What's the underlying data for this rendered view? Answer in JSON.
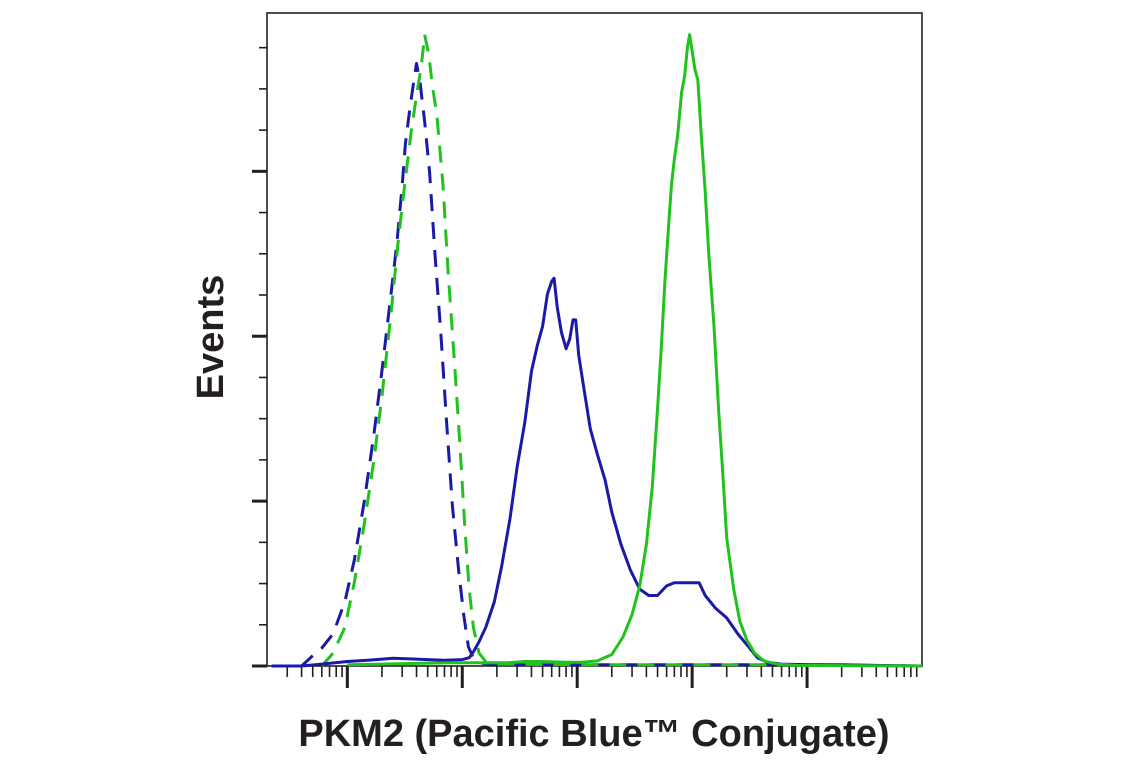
{
  "chart_data": {
    "type": "line",
    "title": "",
    "xlabel": "PKM2 (Pacific Blue™ Conjugate)",
    "ylabel": "Events",
    "x_scale": "log",
    "xlim": [
      0.2,
      100000
    ],
    "ylim": [
      0,
      1
    ],
    "tick_labels_shown": false,
    "grid": false,
    "legend": "none",
    "series": [
      {
        "color": "#1a1aa6",
        "style": "dashed",
        "points": [
          [
            0.22,
            0
          ],
          [
            0.27,
            0
          ],
          [
            0.34,
            0
          ],
          [
            0.4,
            0
          ],
          [
            0.5,
            0.016
          ],
          [
            0.6,
            0.028
          ],
          [
            0.75,
            0.05
          ],
          [
            0.95,
            0.1
          ],
          [
            1.15,
            0.165
          ],
          [
            1.4,
            0.255
          ],
          [
            1.7,
            0.36
          ],
          [
            2.0,
            0.46
          ],
          [
            2.4,
            0.58
          ],
          [
            2.7,
            0.66
          ],
          [
            3.0,
            0.75
          ],
          [
            3.2,
            0.815
          ],
          [
            3.5,
            0.87
          ],
          [
            3.8,
            0.915
          ],
          [
            4.0,
            0.94
          ],
          [
            4.3,
            0.91
          ],
          [
            4.7,
            0.85
          ],
          [
            5.2,
            0.77
          ],
          [
            5.8,
            0.64
          ],
          [
            6.5,
            0.52
          ],
          [
            7.3,
            0.38
          ],
          [
            8.2,
            0.25
          ],
          [
            9.3,
            0.15
          ],
          [
            10.3,
            0.08
          ],
          [
            11.3,
            0.03
          ],
          [
            12.5,
            0.012
          ],
          [
            14,
            0.005
          ],
          [
            17,
            0.003
          ],
          [
            25,
            0.002
          ],
          [
            100,
            0.002
          ],
          [
            1000,
            0.002
          ],
          [
            10000,
            0.002
          ],
          [
            30000,
            0.001
          ],
          [
            100000,
            0
          ]
        ]
      },
      {
        "color": "#22c21e",
        "style": "dashed",
        "points": [
          [
            0.6,
            0
          ],
          [
            0.75,
            0.02
          ],
          [
            0.95,
            0.06
          ],
          [
            1.15,
            0.13
          ],
          [
            1.4,
            0.22
          ],
          [
            1.7,
            0.32
          ],
          [
            2.0,
            0.42
          ],
          [
            2.4,
            0.55
          ],
          [
            2.8,
            0.67
          ],
          [
            3.2,
            0.76
          ],
          [
            3.6,
            0.835
          ],
          [
            4.0,
            0.89
          ],
          [
            4.4,
            0.935
          ],
          [
            4.7,
            0.985
          ],
          [
            5.1,
            0.955
          ],
          [
            5.5,
            0.905
          ],
          [
            6.0,
            0.86
          ],
          [
            6.8,
            0.75
          ],
          [
            7.5,
            0.62
          ],
          [
            8.5,
            0.48
          ],
          [
            9.5,
            0.35
          ],
          [
            10.5,
            0.22
          ],
          [
            11.5,
            0.12
          ],
          [
            12.5,
            0.06
          ],
          [
            14,
            0.02
          ],
          [
            16,
            0.007
          ],
          [
            20,
            0.003
          ],
          [
            100,
            0.002
          ],
          [
            1000,
            0.002
          ],
          [
            10000,
            0.002
          ],
          [
            30000,
            0.001
          ],
          [
            100000,
            0
          ]
        ]
      },
      {
        "color": "#1a1aa6",
        "style": "solid",
        "points": [
          [
            0.22,
            0
          ],
          [
            0.34,
            0
          ],
          [
            0.4,
            0
          ],
          [
            0.6,
            0.003
          ],
          [
            1.0,
            0.007
          ],
          [
            1.5,
            0.009
          ],
          [
            2.5,
            0.012
          ],
          [
            3.5,
            0.011
          ],
          [
            5,
            0.01
          ],
          [
            7,
            0.009
          ],
          [
            10,
            0.01
          ],
          [
            11.5,
            0.013
          ],
          [
            12.5,
            0.022
          ],
          [
            14,
            0.038
          ],
          [
            16,
            0.06
          ],
          [
            19,
            0.1
          ],
          [
            22,
            0.155
          ],
          [
            26,
            0.23
          ],
          [
            30,
            0.31
          ],
          [
            35,
            0.38
          ],
          [
            40,
            0.46
          ],
          [
            45,
            0.5
          ],
          [
            50,
            0.53
          ],
          [
            55,
            0.58
          ],
          [
            60,
            0.6
          ],
          [
            63,
            0.605
          ],
          [
            67,
            0.56
          ],
          [
            73,
            0.52
          ],
          [
            80,
            0.495
          ],
          [
            86,
            0.51
          ],
          [
            92,
            0.54
          ],
          [
            97,
            0.54
          ],
          [
            103,
            0.485
          ],
          [
            115,
            0.43
          ],
          [
            130,
            0.37
          ],
          [
            150,
            0.33
          ],
          [
            175,
            0.29
          ],
          [
            200,
            0.24
          ],
          [
            240,
            0.19
          ],
          [
            290,
            0.15
          ],
          [
            350,
            0.12
          ],
          [
            420,
            0.11
          ],
          [
            500,
            0.11
          ],
          [
            600,
            0.125
          ],
          [
            700,
            0.13
          ],
          [
            850,
            0.13
          ],
          [
            1000,
            0.13
          ],
          [
            1150,
            0.13
          ],
          [
            1300,
            0.11
          ],
          [
            1600,
            0.09
          ],
          [
            2000,
            0.075
          ],
          [
            2500,
            0.05
          ],
          [
            3100,
            0.03
          ],
          [
            3700,
            0.013
          ],
          [
            4500,
            0.006
          ],
          [
            6000,
            0.003
          ],
          [
            10000,
            0.002
          ],
          [
            20000,
            0.002
          ],
          [
            40000,
            0.001
          ],
          [
            100000,
            0
          ]
        ]
      },
      {
        "color": "#22c21e",
        "style": "solid",
        "points": [
          [
            1,
            0.002
          ],
          [
            2,
            0.003
          ],
          [
            4,
            0.004
          ],
          [
            8,
            0.005
          ],
          [
            15,
            0.005
          ],
          [
            25,
            0.005
          ],
          [
            35,
            0.007
          ],
          [
            50,
            0.007
          ],
          [
            80,
            0.006
          ],
          [
            110,
            0.006
          ],
          [
            150,
            0.008
          ],
          [
            200,
            0.018
          ],
          [
            250,
            0.045
          ],
          [
            300,
            0.08
          ],
          [
            350,
            0.125
          ],
          [
            400,
            0.19
          ],
          [
            450,
            0.28
          ],
          [
            500,
            0.4
          ],
          [
            540,
            0.5
          ],
          [
            580,
            0.6
          ],
          [
            620,
            0.68
          ],
          [
            660,
            0.75
          ],
          [
            700,
            0.79
          ],
          [
            750,
            0.83
          ],
          [
            810,
            0.895
          ],
          [
            860,
            0.92
          ],
          [
            910,
            0.965
          ],
          [
            950,
            0.985
          ],
          [
            1000,
            0.96
          ],
          [
            1060,
            0.93
          ],
          [
            1120,
            0.915
          ],
          [
            1200,
            0.83
          ],
          [
            1300,
            0.74
          ],
          [
            1400,
            0.64
          ],
          [
            1550,
            0.53
          ],
          [
            1700,
            0.4
          ],
          [
            1850,
            0.3
          ],
          [
            2000,
            0.2
          ],
          [
            2300,
            0.12
          ],
          [
            2600,
            0.07
          ],
          [
            3000,
            0.04
          ],
          [
            3500,
            0.02
          ],
          [
            4200,
            0.008
          ],
          [
            5500,
            0.003
          ],
          [
            8000,
            0.001
          ],
          [
            100000,
            0
          ]
        ]
      }
    ]
  }
}
